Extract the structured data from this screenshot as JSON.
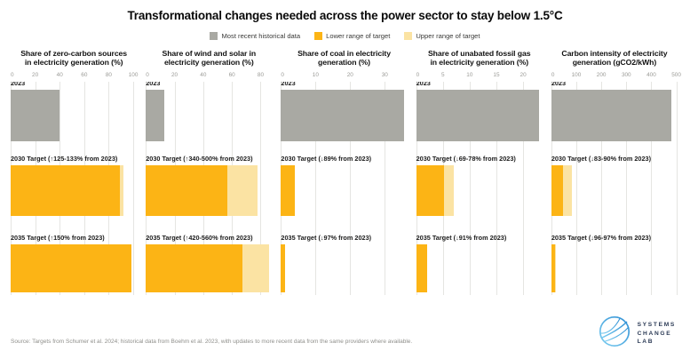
{
  "header": {
    "title": "Transformational changes needed across the power sector to stay below 1.5°C"
  },
  "legend": {
    "items": [
      {
        "label": "Most recent historical data",
        "color": "#A9A9A3"
      },
      {
        "label": "Lower range of target",
        "color": "#FCB415"
      },
      {
        "label": "Upper range of target",
        "color": "#FBE3A3"
      }
    ]
  },
  "colors": {
    "historical": "#A9A9A3",
    "target_lower": "#FCB415",
    "target_upper": "#FBE3A3",
    "gridline": "#E5E5E2",
    "logo_navy": "#2B3A55",
    "logo_blue": "#3F9FDC"
  },
  "chart_data": [
    {
      "type": "bar",
      "orientation": "horizontal",
      "title_lines": [
        "Share of zero-carbon sources",
        "in electricity generation (%)"
      ],
      "ticks": [
        0,
        20,
        40,
        60,
        80,
        100
      ],
      "axis_max": 103,
      "rows": [
        {
          "label": "2023",
          "kind": "historical",
          "lower": 39.5,
          "upper": 39.5
        },
        {
          "label": "2030 Target (↑125-133% from 2023)",
          "kind": "target",
          "lower": 89,
          "upper": 92
        },
        {
          "label": "2035 Target (↑150% from 2023)",
          "kind": "target",
          "lower": 98.8,
          "upper": 98.8
        }
      ]
    },
    {
      "type": "bar",
      "orientation": "horizontal",
      "title_lines": [
        "Share of wind and solar in",
        "electricity generation (%)"
      ],
      "ticks": [
        0,
        20,
        40,
        60,
        80
      ],
      "axis_max": 88,
      "rows": [
        {
          "label": "2023",
          "kind": "historical",
          "lower": 13,
          "upper": 13
        },
        {
          "label": "2030 Target (↑340-500% from 2023)",
          "kind": "target",
          "lower": 57,
          "upper": 78
        },
        {
          "label": "2035 Target (↑420-560% from 2023)",
          "kind": "target",
          "lower": 67.5,
          "upper": 86
        }
      ]
    },
    {
      "type": "bar",
      "orientation": "horizontal",
      "title_lines": [
        "Share of coal in electricity",
        "generation (%)"
      ],
      "ticks": [
        0,
        10,
        20,
        30
      ],
      "axis_max": 36.5,
      "rows": [
        {
          "label": "2023",
          "kind": "historical",
          "lower": 35.5,
          "upper": 35.5
        },
        {
          "label": "2030 Target (↓89% from 2023)",
          "kind": "target",
          "lower": 3.9,
          "upper": 3.9
        },
        {
          "label": "2035 Target (↓97% from 2023)",
          "kind": "target",
          "lower": 1.1,
          "upper": 1.1
        }
      ]
    },
    {
      "type": "bar",
      "orientation": "horizontal",
      "title_lines": [
        "Share of unabated fossil gas",
        "in electricity generation (%)"
      ],
      "ticks": [
        0,
        5,
        10,
        15,
        20
      ],
      "axis_max": 23.6,
      "rows": [
        {
          "label": "2023",
          "kind": "historical",
          "lower": 23,
          "upper": 23
        },
        {
          "label": "2030 Target (↓69-78% from 2023)",
          "kind": "target",
          "lower": 5.2,
          "upper": 7.1
        },
        {
          "label": "2035 Target (↓91% from 2023)",
          "kind": "target",
          "lower": 2.1,
          "upper": 2.1
        }
      ]
    },
    {
      "type": "bar",
      "orientation": "horizontal",
      "title_lines": [
        "Carbon intensity of electricity",
        "generation (gCO2/kWh)"
      ],
      "ticks": [
        0,
        100,
        200,
        300,
        400,
        500
      ],
      "axis_max": 505,
      "rows": [
        {
          "label": "2023",
          "kind": "historical",
          "lower": 480,
          "upper": 480
        },
        {
          "label": "2030 Target (↓83-90% from 2023)",
          "kind": "target",
          "lower": 48,
          "upper": 82
        },
        {
          "label": "2035 Target (↓96-97% from 2023)",
          "kind": "target",
          "lower": 14,
          "upper": 19
        }
      ]
    }
  ],
  "footer": {
    "source": "Source: Targets from Schumer et al. 2024; historical data from Boehm et al. 2023, with updates to more recent data from the same providers where available.",
    "logo_lines": [
      "SYSTEMS",
      "CHANGE",
      "LAB"
    ]
  }
}
